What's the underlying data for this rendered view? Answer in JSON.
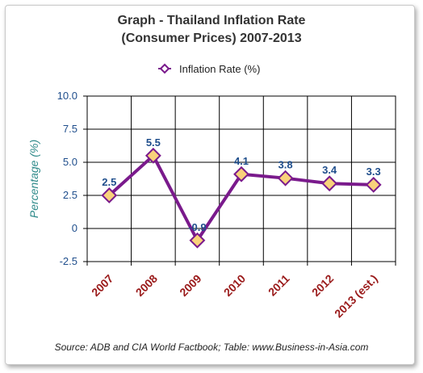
{
  "chart_data": {
    "type": "line",
    "title_line1": "Graph - Thailand Inflation Rate",
    "title_line2": "(Consumer Prices) 2007-2013",
    "ylabel": "Percentage (%)",
    "xlabel": "",
    "categories": [
      "2007",
      "2008",
      "2009",
      "2010",
      "2011",
      "2012",
      "2013 (est.)"
    ],
    "series": [
      {
        "name": "Inflation Rate (%)",
        "values": [
          2.5,
          5.5,
          -0.9,
          4.1,
          3.8,
          3.4,
          3.3
        ],
        "data_labels": [
          "2.5",
          "5.5",
          "-0.9",
          "4.1",
          "3.8",
          "3.4",
          "3.3"
        ]
      }
    ],
    "ylim": [
      -2.5,
      10.0
    ],
    "yticks": [
      10.0,
      7.5,
      5.0,
      2.5,
      0,
      -2.5
    ],
    "ytick_labels": [
      "10.0",
      "7.5",
      "5.0",
      "2.5",
      "0",
      "-2.5"
    ],
    "grid": true,
    "legend_position": "top-center",
    "colors": {
      "line": "#7a1a8c",
      "marker_fill": "#f9d27b",
      "marker_stroke": "#7a1a8c",
      "data_label": "#1f4e8c",
      "x_tick_label": "#9a1a1a",
      "y_tick_label": "#1f4e8c",
      "y_axis_title": "#2e8a8a"
    }
  },
  "source": "Source: ADB and CIA World Factbook; Table: www.Business-in-Asia.com"
}
